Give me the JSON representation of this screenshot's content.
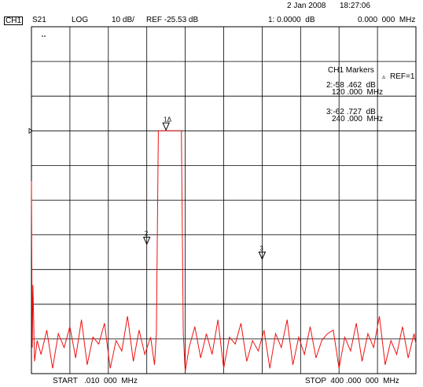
{
  "header": {
    "date": "2 Jan 2008",
    "time": "18:27:06",
    "channel": "CH1",
    "measurement": "S21",
    "format": "LOG",
    "scale": "10 dB/",
    "reference": "REF -25.53 dB",
    "active_marker": "1: 0.0000  dB",
    "active_marker_freq": "0.000  000  MHz"
  },
  "markers_panel": {
    "title": "CH1 Markers",
    "ref_label": "REF=1",
    "entries": [
      {
        "value": "2:-58 .462  dB",
        "freq": "120 .000  MHz"
      },
      {
        "value": "3:-62 .727  dB",
        "freq": "240 .000  MHz"
      }
    ]
  },
  "footer": {
    "start": "START   .010  000  MHz",
    "stop": "STOP  400 .000  000  MHz"
  },
  "colors": {
    "trace": "#ee1111",
    "grid": "#000000",
    "background": "#ffffff"
  },
  "chart_data": {
    "type": "line",
    "title": "",
    "xlabel": "",
    "ylabel": "",
    "x_unit": "MHz",
    "y_unit": "dB",
    "xlim": [
      0.01,
      400
    ],
    "ylim": [
      -95.53,
      4.47
    ],
    "grid": true,
    "reference_level": -25.53,
    "scale_per_div": 10,
    "markers": [
      {
        "id": "1",
        "x": 140,
        "y": -25.53,
        "label": "1Δ"
      },
      {
        "id": "2",
        "x": 120,
        "y": -58.462,
        "label": "2"
      },
      {
        "id": "3",
        "x": 240,
        "y": -62.727,
        "label": "3"
      }
    ],
    "series": [
      {
        "x": [
          0.01,
          0.8,
          1.6,
          3.2,
          6,
          10,
          16,
          22,
          28,
          34,
          40,
          46,
          52,
          58,
          64,
          70,
          76,
          82,
          88,
          94,
          100,
          106,
          112,
          118,
          124,
          128,
          130,
          132,
          136,
          140,
          146,
          152,
          156,
          158,
          160,
          164,
          170,
          176,
          182,
          188,
          194,
          200,
          206,
          212,
          218,
          224,
          230,
          236,
          242,
          248,
          254,
          260,
          266,
          272,
          278,
          284,
          290,
          296,
          302,
          308,
          314,
          320,
          326,
          332,
          338,
          344,
          350,
          356,
          362,
          368,
          374,
          380,
          386,
          392,
          398,
          400
        ],
        "y": [
          -40,
          -88,
          -70,
          -92,
          -86,
          -90,
          -83,
          -94,
          -84,
          -88,
          -82,
          -91,
          -80,
          -93,
          -85,
          -87,
          -81,
          -94,
          -86,
          -89,
          -79,
          -92,
          -83,
          -90,
          -85,
          -93,
          -84,
          -25.53,
          -25.53,
          -25.53,
          -25.53,
          -25.53,
          -25.53,
          -84,
          -95,
          -88,
          -82,
          -91,
          -84,
          -90,
          -80,
          -94,
          -85,
          -87,
          -81,
          -92,
          -86,
          -89,
          -83,
          -94,
          -84,
          -88,
          -80,
          -93,
          -85,
          -90,
          -82,
          -91,
          -86,
          -84,
          -83,
          -94,
          -85,
          -89,
          -81,
          -92,
          -84,
          -88,
          -79,
          -93,
          -86,
          -90,
          -82,
          -91,
          -84,
          -87
        ]
      }
    ]
  }
}
